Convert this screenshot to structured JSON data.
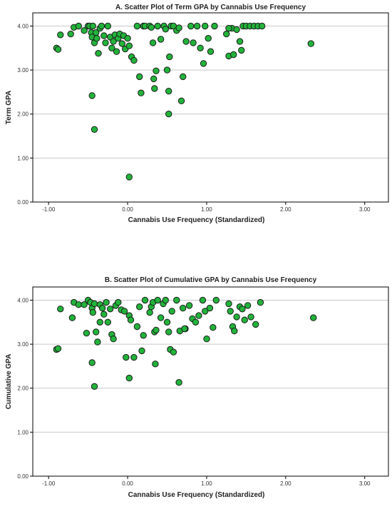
{
  "charts": [
    {
      "type": "scatter",
      "title": "A. Scatter Plot of Term GPA by Cannabis Use Frequency",
      "xlabel": "Cannabis Use Frequency (Standardized)",
      "ylabel": "Term GPA",
      "xlim": [
        -1.2,
        3.3
      ],
      "ylim": [
        0,
        4.3
      ],
      "xticks": [
        "-1.00",
        "0.00",
        "1.00",
        "2.00",
        "3.00"
      ],
      "xtick_values": [
        -1,
        0,
        1,
        2,
        3
      ],
      "yticks": [
        "0.00",
        "1.00",
        "2.00",
        "3.00",
        "4.00"
      ],
      "ytick_values": [
        0,
        1,
        2,
        3,
        4
      ],
      "grid": "horizontal",
      "marker_color": "#22b33a",
      "points": [
        [
          -0.9,
          3.5
        ],
        [
          -0.88,
          3.47
        ],
        [
          -0.85,
          3.8
        ],
        [
          -0.72,
          3.82
        ],
        [
          -0.68,
          3.97
        ],
        [
          -0.62,
          4.0
        ],
        [
          -0.55,
          3.9
        ],
        [
          -0.5,
          4.0
        ],
        [
          -0.48,
          4.0
        ],
        [
          -0.46,
          3.85
        ],
        [
          -0.45,
          3.75
        ],
        [
          -0.44,
          4.0
        ],
        [
          -0.42,
          3.62
        ],
        [
          -0.4,
          3.85
        ],
        [
          -0.39,
          3.72
        ],
        [
          -0.37,
          3.38
        ],
        [
          -0.35,
          3.95
        ],
        [
          -0.33,
          4.0
        ],
        [
          -0.3,
          3.78
        ],
        [
          -0.28,
          3.62
        ],
        [
          -0.25,
          4.0
        ],
        [
          -0.22,
          3.75
        ],
        [
          -0.2,
          3.5
        ],
        [
          -0.18,
          3.65
        ],
        [
          -0.16,
          3.8
        ],
        [
          -0.14,
          3.42
        ],
        [
          -0.12,
          3.72
        ],
        [
          -0.1,
          3.82
        ],
        [
          -0.07,
          3.6
        ],
        [
          -0.05,
          3.78
        ],
        [
          -0.03,
          3.48
        ],
        [
          0.0,
          3.72
        ],
        [
          0.02,
          3.55
        ],
        [
          0.05,
          3.3
        ],
        [
          0.08,
          3.22
        ],
        [
          0.12,
          4.0
        ],
        [
          0.15,
          2.85
        ],
        [
          0.17,
          2.48
        ],
        [
          0.2,
          4.0
        ],
        [
          0.22,
          4.0
        ],
        [
          0.28,
          4.0
        ],
        [
          0.3,
          3.97
        ],
        [
          0.32,
          3.62
        ],
        [
          0.33,
          2.8
        ],
        [
          0.34,
          2.58
        ],
        [
          0.36,
          2.98
        ],
        [
          0.38,
          4.0
        ],
        [
          0.42,
          3.7
        ],
        [
          0.46,
          4.0
        ],
        [
          0.48,
          3.93
        ],
        [
          0.5,
          3.0
        ],
        [
          0.52,
          2.52
        ],
        [
          0.53,
          3.3
        ],
        [
          0.55,
          4.0
        ],
        [
          0.58,
          4.0
        ],
        [
          0.62,
          3.9
        ],
        [
          0.65,
          3.96
        ],
        [
          0.68,
          2.3
        ],
        [
          0.7,
          2.85
        ],
        [
          0.74,
          3.65
        ],
        [
          0.8,
          4.0
        ],
        [
          0.83,
          3.62
        ],
        [
          0.88,
          4.0
        ],
        [
          0.92,
          3.5
        ],
        [
          0.96,
          3.15
        ],
        [
          0.98,
          4.0
        ],
        [
          1.02,
          3.72
        ],
        [
          1.05,
          3.42
        ],
        [
          1.1,
          4.0
        ],
        [
          1.25,
          3.82
        ],
        [
          1.28,
          3.32
        ],
        [
          1.32,
          3.95
        ],
        [
          1.34,
          3.35
        ],
        [
          1.38,
          3.92
        ],
        [
          1.42,
          3.65
        ],
        [
          1.44,
          3.45
        ],
        [
          1.46,
          4.0
        ],
        [
          1.5,
          4.0
        ],
        [
          1.55,
          4.0
        ],
        [
          1.6,
          4.0
        ],
        [
          1.65,
          4.0
        ],
        [
          1.7,
          4.0
        ],
        [
          2.32,
          3.6
        ],
        [
          -0.45,
          2.42
        ],
        [
          -0.42,
          1.65
        ],
        [
          0.02,
          0.57
        ],
        [
          0.52,
          2.0
        ],
        [
          1.28,
          3.95
        ]
      ]
    },
    {
      "type": "scatter",
      "title": "B. Scatter Plot of Cumulative GPA by Cannabis Use Frequency",
      "xlabel": "Cannabis Use Frequency (Standardized)",
      "ylabel": "Cumulative GPA",
      "xlim": [
        -1.2,
        3.3
      ],
      "ylim": [
        0,
        4.3
      ],
      "xticks": [
        "-1.00",
        "0.00",
        "1.00",
        "2.00",
        "3.00"
      ],
      "xtick_values": [
        -1,
        0,
        1,
        2,
        3
      ],
      "yticks": [
        "0.00",
        "1.00",
        "2.00",
        "3.00",
        "4.00"
      ],
      "ytick_values": [
        0,
        1,
        2,
        3,
        4
      ],
      "grid": "horizontal",
      "marker_color": "#22b33a",
      "points": [
        [
          -0.9,
          2.88
        ],
        [
          -0.88,
          2.9
        ],
        [
          -0.85,
          3.8
        ],
        [
          -0.7,
          3.6
        ],
        [
          -0.68,
          3.95
        ],
        [
          -0.62,
          3.9
        ],
        [
          -0.55,
          3.9
        ],
        [
          -0.52,
          3.25
        ],
        [
          -0.5,
          4.0
        ],
        [
          -0.47,
          3.95
        ],
        [
          -0.45,
          3.82
        ],
        [
          -0.44,
          3.72
        ],
        [
          -0.42,
          3.92
        ],
        [
          -0.4,
          3.28
        ],
        [
          -0.38,
          3.05
        ],
        [
          -0.35,
          3.9
        ],
        [
          -0.32,
          3.82
        ],
        [
          -0.3,
          3.68
        ],
        [
          -0.27,
          3.95
        ],
        [
          -0.25,
          3.5
        ],
        [
          -0.22,
          3.8
        ],
        [
          -0.2,
          3.22
        ],
        [
          -0.18,
          3.12
        ],
        [
          -0.15,
          3.88
        ],
        [
          -0.12,
          3.95
        ],
        [
          -0.08,
          3.78
        ],
        [
          -0.04,
          3.75
        ],
        [
          -0.02,
          2.7
        ],
        [
          0.02,
          3.65
        ],
        [
          0.04,
          3.55
        ],
        [
          0.08,
          2.7
        ],
        [
          0.12,
          3.4
        ],
        [
          0.15,
          3.85
        ],
        [
          0.18,
          2.85
        ],
        [
          0.2,
          3.2
        ],
        [
          0.22,
          4.0
        ],
        [
          0.28,
          3.72
        ],
        [
          0.3,
          3.85
        ],
        [
          0.32,
          3.95
        ],
        [
          0.34,
          3.28
        ],
        [
          0.36,
          3.32
        ],
        [
          0.38,
          4.0
        ],
        [
          0.42,
          3.6
        ],
        [
          0.45,
          3.92
        ],
        [
          0.48,
          4.0
        ],
        [
          0.5,
          3.5
        ],
        [
          0.52,
          3.28
        ],
        [
          0.54,
          2.88
        ],
        [
          0.56,
          3.75
        ],
        [
          0.58,
          2.82
        ],
        [
          0.62,
          4.0
        ],
        [
          0.66,
          3.3
        ],
        [
          0.7,
          3.82
        ],
        [
          0.73,
          3.35
        ],
        [
          0.78,
          3.88
        ],
        [
          0.82,
          3.58
        ],
        [
          0.86,
          3.5
        ],
        [
          0.9,
          3.65
        ],
        [
          0.95,
          4.0
        ],
        [
          0.98,
          3.75
        ],
        [
          1.0,
          3.12
        ],
        [
          1.04,
          3.82
        ],
        [
          1.08,
          3.38
        ],
        [
          1.12,
          4.0
        ],
        [
          1.28,
          3.92
        ],
        [
          1.3,
          3.75
        ],
        [
          1.33,
          3.4
        ],
        [
          1.35,
          3.3
        ],
        [
          1.38,
          3.62
        ],
        [
          1.42,
          3.85
        ],
        [
          1.45,
          3.8
        ],
        [
          1.48,
          3.55
        ],
        [
          1.52,
          3.88
        ],
        [
          1.56,
          3.62
        ],
        [
          1.62,
          3.45
        ],
        [
          1.68,
          3.95
        ],
        [
          2.35,
          3.6
        ],
        [
          -0.45,
          2.58
        ],
        [
          -0.42,
          2.04
        ],
        [
          0.02,
          2.23
        ],
        [
          0.35,
          2.55
        ],
        [
          0.65,
          2.13
        ],
        [
          0.72,
          3.35
        ],
        [
          -0.35,
          3.5
        ]
      ]
    }
  ]
}
